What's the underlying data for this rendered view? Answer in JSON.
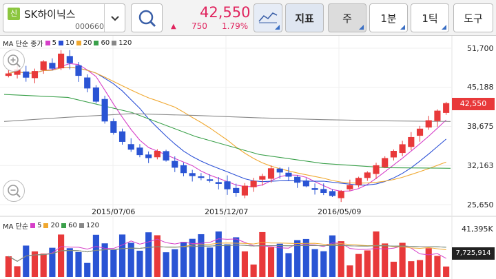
{
  "stock": {
    "badge": "신",
    "name": "SK하이닉스",
    "code": "000660"
  },
  "quote": {
    "price": "42,550",
    "arrow": "▲",
    "change": "750",
    "change_pct": "1.79%"
  },
  "toolbar": {
    "indicator_label": "지표",
    "period_label": "주",
    "interval_label": "1분",
    "tick_label": "1틱",
    "tools_label": "도구"
  },
  "main_legend": {
    "title": "MA 단순 종가",
    "items": [
      {
        "label": "5",
        "color": "#d63fc8"
      },
      {
        "label": "10",
        "color": "#2a4fd6"
      },
      {
        "label": "20",
        "color": "#f0a830"
      },
      {
        "label": "60",
        "color": "#3aa04a"
      },
      {
        "label": "120",
        "color": "#888888"
      }
    ]
  },
  "volume_legend": {
    "title": "MA 단순",
    "items": [
      {
        "label": "5",
        "color": "#d63fc8"
      },
      {
        "label": "20",
        "color": "#f0a830"
      },
      {
        "label": "60",
        "color": "#3aa04a"
      },
      {
        "label": "120",
        "color": "#888888"
      }
    ]
  },
  "price_axis": [
    "51,700",
    "45,188",
    "38,675",
    "32,163",
    "25,650"
  ],
  "volume_axis": {
    "max": "41,395K"
  },
  "date_axis": [
    "2015/07/06",
    "2015/12/07",
    "2016/05/09"
  ],
  "current_price_tag": "42,550",
  "current_volume_tag": "7,725,914",
  "colors": {
    "up": "#e8393a",
    "down": "#2a54d4",
    "accent": "#e0245e"
  },
  "chart_data": {
    "type": "candlestick",
    "y_range": [
      25650,
      51700
    ],
    "weekly_closes_approx": [
      47500,
      48200,
      46800,
      47900,
      49500,
      48300,
      50800,
      49200,
      47100,
      45000,
      42800,
      39500,
      37600,
      36100,
      34800,
      33900,
      33400,
      34600,
      33000,
      31800,
      30900,
      30400,
      30100,
      29600,
      29100,
      28200,
      27600,
      28800,
      29600,
      30400,
      31700,
      31000,
      30300,
      29300,
      28700,
      28100,
      27600,
      27100,
      27900,
      28900,
      30100,
      31000,
      32200,
      33400,
      34600,
      35700,
      36900,
      38300,
      39700,
      41300,
      42550
    ],
    "volume_max": 41395000,
    "volume_last": 7725914
  }
}
